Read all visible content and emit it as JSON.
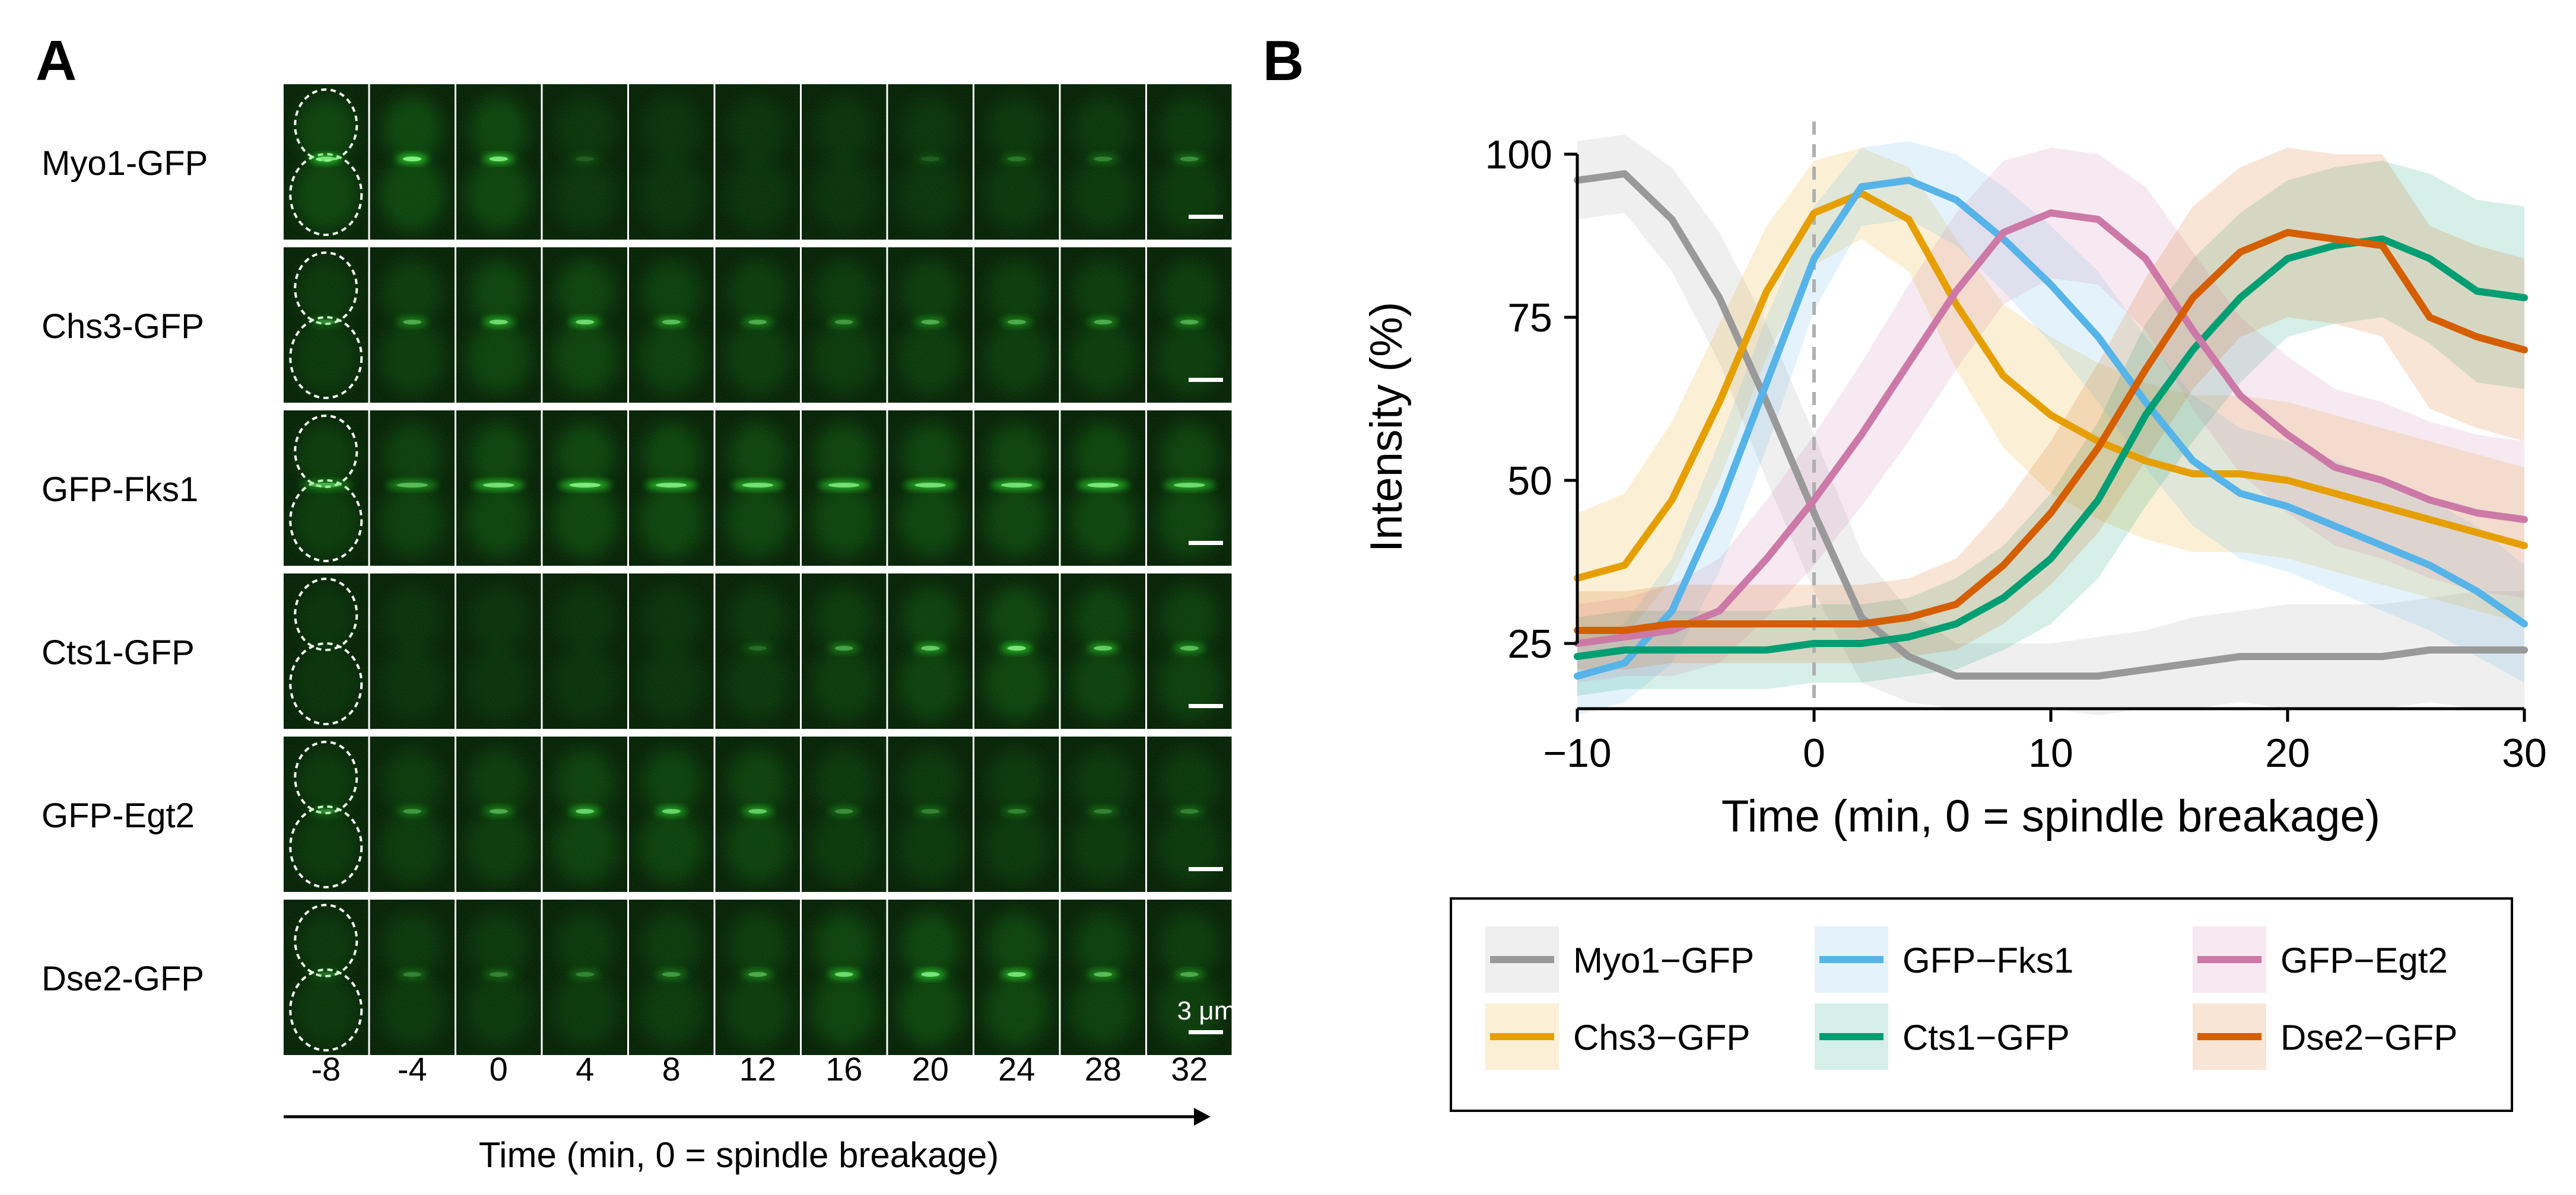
{
  "panel_a": {
    "label": "A",
    "rows": [
      "Myo1-GFP",
      "Chs3-GFP",
      "GFP-Fks1",
      "Cts1-GFP",
      "GFP-Egt2",
      "Dse2-GFP"
    ],
    "timepoints": [
      "-8",
      "-4",
      "0",
      "4",
      "8",
      "12",
      "16",
      "20",
      "24",
      "28",
      "32"
    ],
    "scale_bar_label": "3 μm",
    "xlabel": "Time (min, 0 = spindle breakage)",
    "image_colors": {
      "background": "#031403",
      "signal": "#2bd12b",
      "outline": "#ffffff"
    }
  },
  "panel_b": {
    "label": "B"
  },
  "chart_data": {
    "type": "line",
    "title": "",
    "xlabel": "Time (min, 0 = spindle breakage)",
    "ylabel": "Intensity (%)",
    "xlim": [
      -10,
      30
    ],
    "ylim": [
      15,
      105
    ],
    "xticks": [
      "-10",
      "0",
      "10",
      "20",
      "30"
    ],
    "yticks": [
      "25",
      "50",
      "75",
      "100"
    ],
    "ytick_values": [
      25,
      50,
      75,
      100
    ],
    "xtick_values": [
      -10,
      0,
      10,
      20,
      30
    ],
    "reference_line": {
      "x": 0,
      "style": "dashed"
    },
    "bands": "shaded variability band around each series",
    "legend_position": "below",
    "x": [
      -10,
      -8,
      -6,
      -4,
      -2,
      0,
      2,
      4,
      6,
      8,
      10,
      12,
      14,
      16,
      18,
      20,
      22,
      24,
      26,
      28,
      30
    ],
    "series": [
      {
        "name": "Myo1−GFP",
        "color": "#999999",
        "values": [
          96,
          97,
          90,
          78,
          62,
          45,
          29,
          23,
          20,
          20,
          20,
          20,
          21,
          22,
          23,
          23,
          23,
          23,
          24,
          24,
          24
        ],
        "band": [
          6,
          6,
          8,
          10,
          12,
          12,
          10,
          7,
          5,
          5,
          5,
          6,
          6,
          7,
          7,
          8,
          8,
          8,
          8,
          9,
          9
        ]
      },
      {
        "name": "Chs3−GFP",
        "color": "#E69F00",
        "values": [
          35,
          37,
          47,
          62,
          79,
          91,
          94,
          90,
          77,
          66,
          60,
          56,
          53,
          51,
          51,
          50,
          48,
          46,
          44,
          42,
          40
        ],
        "band": [
          10,
          11,
          12,
          12,
          10,
          8,
          7,
          8,
          10,
          11,
          12,
          12,
          12,
          12,
          12,
          12,
          12,
          12,
          12,
          12,
          12
        ]
      },
      {
        "name": "GFP−Fks1",
        "color": "#56B4E9",
        "values": [
          20,
          22,
          30,
          46,
          65,
          84,
          95,
          96,
          93,
          87,
          80,
          72,
          62,
          53,
          48,
          46,
          43,
          40,
          37,
          33,
          28
        ],
        "band": [
          6,
          6,
          8,
          10,
          10,
          8,
          6,
          6,
          7,
          8,
          9,
          10,
          10,
          10,
          10,
          10,
          10,
          10,
          10,
          10,
          9
        ]
      },
      {
        "name": "Cts1−GFP",
        "color": "#009E73",
        "values": [
          23,
          24,
          24,
          24,
          24,
          25,
          25,
          26,
          28,
          32,
          38,
          47,
          60,
          70,
          78,
          84,
          86,
          87,
          84,
          79,
          78
        ],
        "band": [
          6,
          6,
          6,
          6,
          6,
          6,
          6,
          6,
          7,
          8,
          10,
          12,
          14,
          14,
          13,
          12,
          12,
          12,
          13,
          14,
          14
        ]
      },
      {
        "name": "GFP−Egt2",
        "color": "#CC79A7",
        "values": [
          25,
          26,
          27,
          30,
          38,
          47,
          57,
          68,
          79,
          88,
          91,
          90,
          84,
          73,
          63,
          57,
          52,
          50,
          47,
          45,
          44
        ],
        "band": [
          6,
          6,
          7,
          8,
          9,
          10,
          11,
          12,
          12,
          11,
          10,
          10,
          11,
          12,
          12,
          12,
          12,
          12,
          12,
          12,
          12
        ]
      },
      {
        "name": "Dse2−GFP",
        "color": "#D55E00",
        "values": [
          27,
          27,
          28,
          28,
          28,
          28,
          28,
          29,
          31,
          37,
          45,
          55,
          67,
          78,
          85,
          88,
          87,
          86,
          75,
          72,
          70
        ],
        "band": [
          6,
          6,
          6,
          6,
          6,
          6,
          6,
          6,
          7,
          9,
          11,
          13,
          14,
          14,
          13,
          13,
          13,
          14,
          14,
          14,
          14
        ]
      }
    ]
  }
}
